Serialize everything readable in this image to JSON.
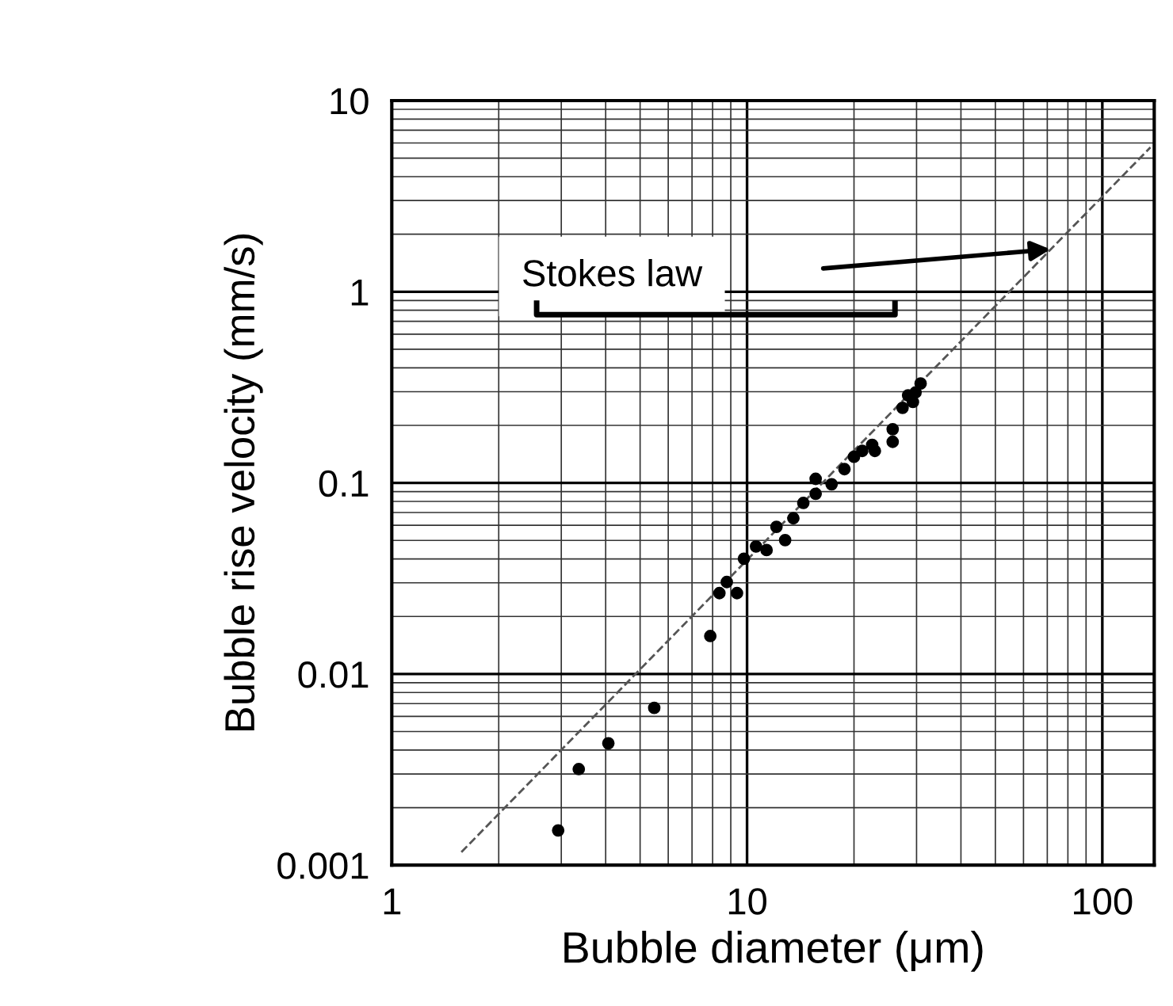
{
  "chart_data": {
    "type": "scatter",
    "xlabel": "Bubble diameter (μm)",
    "ylabel": "Bubble rise velocity (mm/s)",
    "log": "xy",
    "xlim": [
      1,
      140
    ],
    "ylim": [
      0.001,
      10
    ],
    "xticks": [
      1,
      10,
      100
    ],
    "yticks": [
      0.001,
      0.01,
      0.1,
      1,
      10
    ],
    "grid": true,
    "series": [
      {
        "color": "#000000",
        "marker": "circle",
        "x": [
          2.94,
          3.36,
          4.07,
          5.48,
          7.88,
          8.36,
          8.77,
          9.37,
          9.8,
          10.6,
          11.35,
          12.1,
          12.8,
          13.5,
          14.4,
          15.6,
          15.6,
          17.3,
          18.8,
          20.0,
          21.1,
          22.5,
          22.9,
          25.7,
          25.7,
          27.4,
          28.4,
          29.3,
          29.8,
          30.8
        ],
        "values": [
          0.00152,
          0.00318,
          0.00434,
          0.00665,
          0.0158,
          0.0265,
          0.0303,
          0.0265,
          0.0401,
          0.0465,
          0.0445,
          0.0589,
          0.0502,
          0.0653,
          0.0785,
          0.105,
          0.0877,
          0.0984,
          0.118,
          0.137,
          0.147,
          0.158,
          0.147,
          0.191,
          0.164,
          0.247,
          0.287,
          0.265,
          0.297,
          0.331
        ]
      },
      {
        "type": "line",
        "color": "#555555",
        "line_style": "dashed",
        "marker": "none",
        "x": [
          1.57,
          136.6
        ],
        "values": [
          0.00117,
          5.69
        ]
      }
    ],
    "annotations": [
      "Stokes law"
    ]
  }
}
